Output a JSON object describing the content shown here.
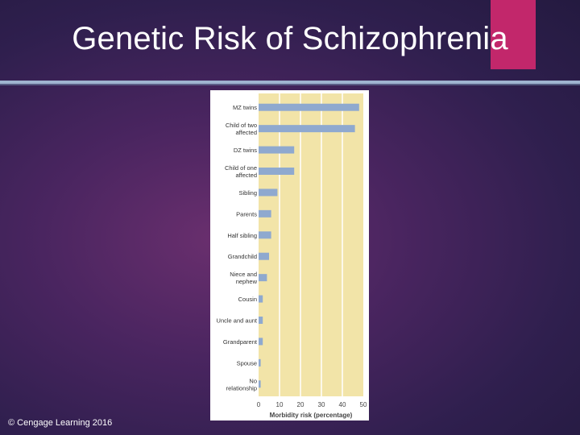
{
  "slide": {
    "title": "Genetic Risk of Schizophrenia",
    "copyright": "© Cengage Learning 2016"
  },
  "colors": {
    "accent": "#c2276b",
    "plot_background": "#f2e4a8",
    "bar_fill": "#8fa9cf",
    "grid": "#ffffff"
  },
  "chart_data": {
    "type": "bar",
    "orientation": "horizontal",
    "categories": [
      "MZ twins",
      "Child of two affected parents",
      "DZ twins",
      "Child of one affected parent",
      "Sibling",
      "Parents",
      "Half sibling",
      "Grandchild",
      "Niece and nephew",
      "Cousin",
      "Uncle and aunt",
      "Grandparent",
      "Spouse",
      "No relationship"
    ],
    "values": [
      48,
      46,
      17,
      17,
      9,
      6,
      6,
      5,
      4,
      2,
      2,
      2,
      1,
      1
    ],
    "xlabel": "Morbidity risk (percentage)",
    "xlim": [
      0,
      50
    ],
    "xticks": [
      "0",
      "10",
      "20",
      "30",
      "40",
      "50"
    ],
    "grid": true
  }
}
